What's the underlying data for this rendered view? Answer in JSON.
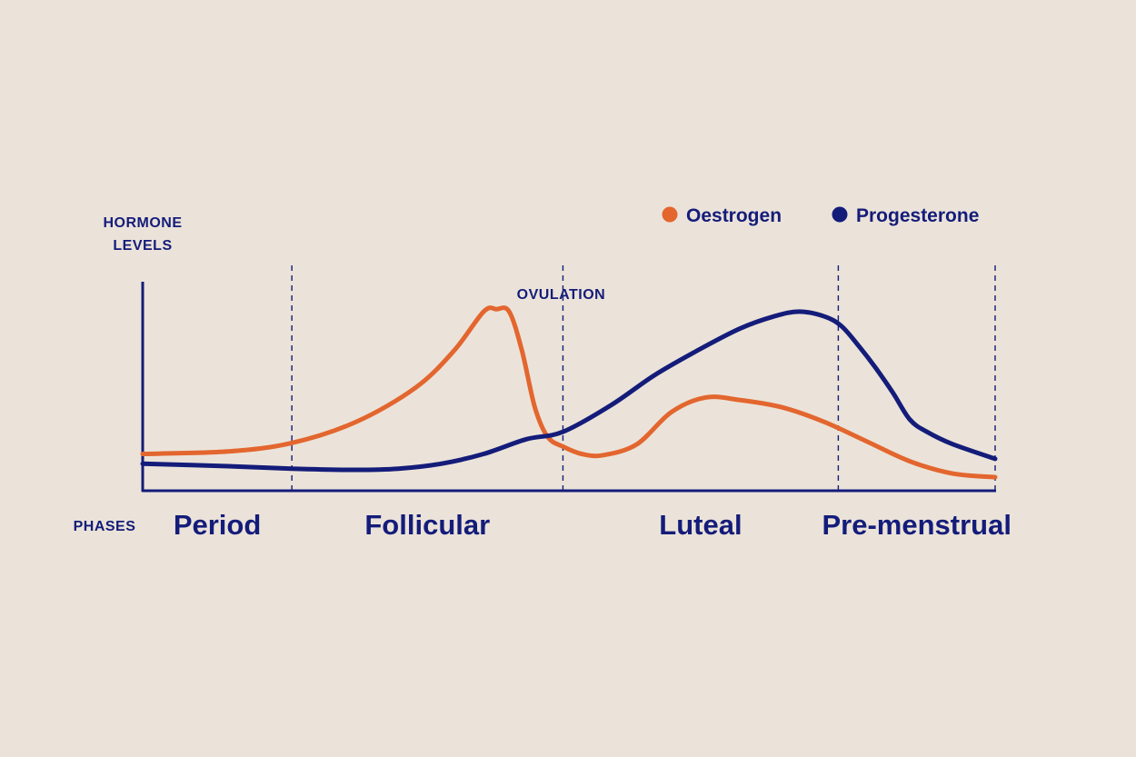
{
  "chart_data": {
    "type": "line",
    "ylabel_lines": [
      "HORMONE",
      "LEVELS"
    ],
    "xlabel": "PHASES",
    "x_range": [
      0,
      100
    ],
    "y_range": [
      0,
      100
    ],
    "grid": false,
    "legend_position": "top-right",
    "annotation": {
      "label": "OVULATION",
      "x": 49.3
    },
    "phase_dividers": [
      17.5,
      49.3,
      81.6,
      100
    ],
    "phases": [
      {
        "label": "Period",
        "center": 8.75
      },
      {
        "label": "Follicular",
        "center": 33.4
      },
      {
        "label": "Luteal",
        "center": 65.45
      },
      {
        "label": "Pre-menstrual",
        "center": 90.8
      }
    ],
    "series": [
      {
        "name": "Oestrogen",
        "color": "#e3662f",
        "x": [
          0,
          10,
          17.5,
          25,
          32,
          36.5,
          40,
          41.5,
          43,
          44.5,
          46,
          47.5,
          49.3,
          51.5,
          54,
          58,
          62,
          66,
          70,
          75,
          80,
          85,
          90,
          95,
          100
        ],
        "y": [
          15,
          16,
          19.5,
          28,
          42,
          57,
          73,
          74,
          73,
          57,
          34,
          22,
          18,
          15,
          14.5,
          19,
          32,
          38,
          37,
          34,
          28,
          20,
          12,
          7,
          5.5
        ]
      },
      {
        "name": "Progesterone",
        "color": "#141c7a",
        "x": [
          0,
          10,
          17.5,
          25,
          30,
          35,
          40,
          45,
          49.3,
          55,
          60,
          65,
          70,
          74,
          77,
          80,
          82,
          84,
          86,
          88,
          90,
          92,
          95,
          100
        ],
        "y": [
          11,
          10,
          9,
          8.5,
          9,
          11,
          15,
          21,
          24,
          35,
          47,
          57,
          66,
          71,
          73,
          71,
          67,
          59,
          50,
          40,
          29,
          24,
          19,
          13
        ]
      }
    ]
  }
}
